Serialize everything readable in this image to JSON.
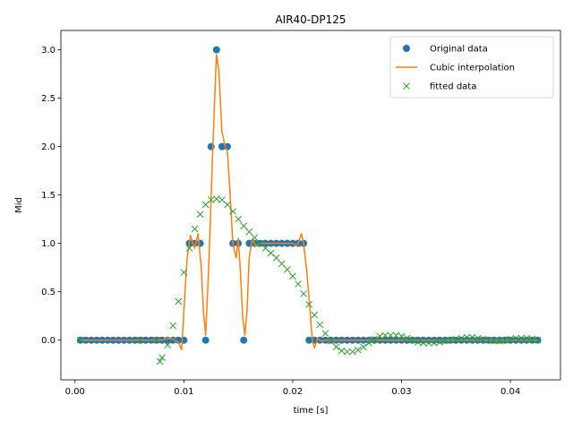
{
  "chart_data": {
    "type": "line",
    "title": "AIR40-DP125",
    "xlabel": "time [s]",
    "ylabel": "Mid",
    "xlim": [
      -0.0013,
      0.0446
    ],
    "ylim": [
      -0.41,
      3.2
    ],
    "x_ticks": [
      0.0,
      0.01,
      0.02,
      0.03,
      0.04
    ],
    "x_tick_labels": [
      "0.00",
      "0.01",
      "0.02",
      "0.03",
      "0.04"
    ],
    "y_ticks": [
      0.0,
      0.5,
      1.0,
      1.5,
      2.0,
      2.5,
      3.0
    ],
    "y_tick_labels": [
      "0.0",
      "0.5",
      "1.0",
      "1.5",
      "2.0",
      "2.5",
      "3.0"
    ],
    "grid": false,
    "legend_position": "top-right",
    "series": [
      {
        "name": "Original data",
        "marker": "circle",
        "color": "#1f77b4",
        "x": [
          0.0005,
          0.001,
          0.0015,
          0.002,
          0.0025,
          0.003,
          0.0035,
          0.004,
          0.0045,
          0.005,
          0.0055,
          0.006,
          0.0065,
          0.007,
          0.0075,
          0.008,
          0.0085,
          0.009,
          0.0095,
          0.01,
          0.0105,
          0.011,
          0.0115,
          0.012,
          0.0125,
          0.013,
          0.0135,
          0.014,
          0.0145,
          0.015,
          0.0155,
          0.016,
          0.0165,
          0.017,
          0.0175,
          0.018,
          0.0185,
          0.019,
          0.0195,
          0.02,
          0.0205,
          0.021,
          0.0215,
          0.022,
          0.0225,
          0.023,
          0.0235,
          0.024,
          0.0245,
          0.025,
          0.0255,
          0.026,
          0.0265,
          0.027,
          0.0275,
          0.028,
          0.0285,
          0.029,
          0.0295,
          0.03,
          0.0305,
          0.031,
          0.0315,
          0.032,
          0.0325,
          0.033,
          0.0335,
          0.034,
          0.0345,
          0.035,
          0.0355,
          0.036,
          0.0365,
          0.037,
          0.0375,
          0.038,
          0.0385,
          0.039,
          0.0395,
          0.04,
          0.0405,
          0.041,
          0.0415,
          0.042,
          0.0425
        ],
        "y": [
          0,
          0,
          0,
          0,
          0,
          0,
          0,
          0,
          0,
          0,
          0,
          0,
          0,
          0,
          0,
          0,
          0,
          0,
          0,
          0,
          1,
          1,
          1,
          0,
          2,
          3,
          2,
          2,
          1,
          1,
          0,
          1,
          1,
          1,
          1,
          1,
          1,
          1,
          1,
          1,
          1,
          1,
          0,
          0,
          0,
          0,
          0,
          0,
          0,
          0,
          0,
          0,
          0,
          0,
          0,
          0,
          0,
          0,
          0,
          0,
          0,
          0,
          0,
          0,
          0,
          0,
          0,
          0,
          0,
          0,
          0,
          0,
          0,
          0,
          0,
          0,
          0,
          0,
          0,
          0,
          0,
          0,
          0,
          0,
          0
        ]
      },
      {
        "name": "Cubic interpolation",
        "marker": "line",
        "color": "#ff7f0e",
        "x": [
          0.0005,
          0.007,
          0.008,
          0.0085,
          0.009,
          0.0095,
          0.0098,
          0.01,
          0.0103,
          0.0106,
          0.011,
          0.0113,
          0.0116,
          0.0118,
          0.012,
          0.0123,
          0.0126,
          0.0129,
          0.013,
          0.0132,
          0.0135,
          0.0138,
          0.014,
          0.0142,
          0.0145,
          0.0148,
          0.015,
          0.0152,
          0.0154,
          0.0156,
          0.0158,
          0.016,
          0.0163,
          0.0166,
          0.017,
          0.0175,
          0.018,
          0.0185,
          0.019,
          0.0195,
          0.02,
          0.0204,
          0.0208,
          0.021,
          0.0213,
          0.0216,
          0.0218,
          0.022,
          0.0223,
          0.0226,
          0.023,
          0.025,
          0.03,
          0.035,
          0.04,
          0.0425
        ],
        "y": [
          0,
          0,
          0,
          0.02,
          0.01,
          -0.02,
          -0.1,
          0.3,
          0.85,
          1.08,
          0.95,
          1.1,
          0.75,
          0.3,
          0.05,
          0.8,
          1.8,
          2.7,
          2.95,
          2.8,
          2.15,
          2.0,
          1.95,
          1.6,
          1.0,
          0.85,
          1.05,
          0.7,
          0.25,
          0.05,
          0.3,
          0.85,
          1.05,
          0.97,
          1.0,
          1.0,
          1.0,
          1.0,
          1.0,
          1.0,
          1.0,
          0.97,
          1.1,
          1.0,
          0.7,
          0.3,
          0.0,
          -0.08,
          0.02,
          -0.01,
          0.0,
          0.0,
          0.0,
          0.0,
          0.0,
          0.0
        ]
      },
      {
        "name": "fitted data",
        "marker": "x",
        "color": "#2ca02c",
        "x": [
          0.0005,
          0.006,
          0.0075,
          0.0078,
          0.008,
          0.0085,
          0.009,
          0.0095,
          0.01,
          0.0105,
          0.011,
          0.0115,
          0.012,
          0.0125,
          0.013,
          0.0135,
          0.014,
          0.0145,
          0.015,
          0.0155,
          0.016,
          0.0165,
          0.017,
          0.0175,
          0.018,
          0.0185,
          0.019,
          0.0195,
          0.02,
          0.0205,
          0.021,
          0.0215,
          0.022,
          0.0225,
          0.023,
          0.0235,
          0.024,
          0.0245,
          0.025,
          0.0255,
          0.026,
          0.0265,
          0.027,
          0.0275,
          0.028,
          0.0285,
          0.029,
          0.0295,
          0.03,
          0.0305,
          0.031,
          0.0315,
          0.032,
          0.0325,
          0.033,
          0.0335,
          0.034,
          0.0345,
          0.035,
          0.0355,
          0.036,
          0.0365,
          0.037,
          0.0375,
          0.038,
          0.0385,
          0.039,
          0.0395,
          0.04,
          0.0405,
          0.041,
          0.0415,
          0.042,
          0.0425
        ],
        "y": [
          0,
          0,
          0,
          -0.22,
          -0.18,
          -0.05,
          0.15,
          0.4,
          0.7,
          0.95,
          1.15,
          1.3,
          1.4,
          1.45,
          1.46,
          1.45,
          1.4,
          1.33,
          1.25,
          1.18,
          1.12,
          1.06,
          1.0,
          0.95,
          0.9,
          0.85,
          0.79,
          0.73,
          0.66,
          0.58,
          0.48,
          0.37,
          0.26,
          0.16,
          0.07,
          -0.01,
          -0.07,
          -0.11,
          -0.12,
          -0.12,
          -0.1,
          -0.07,
          -0.03,
          0.01,
          0.04,
          0.05,
          0.05,
          0.05,
          0.04,
          0.02,
          0.0,
          -0.02,
          -0.03,
          -0.03,
          -0.03,
          -0.02,
          -0.01,
          0.0,
          0.01,
          0.02,
          0.03,
          0.03,
          0.02,
          0.01,
          0.0,
          -0.01,
          -0.01,
          0.0,
          0.01,
          0.02,
          0.02,
          0.02,
          0.01,
          0.0
        ]
      }
    ]
  }
}
